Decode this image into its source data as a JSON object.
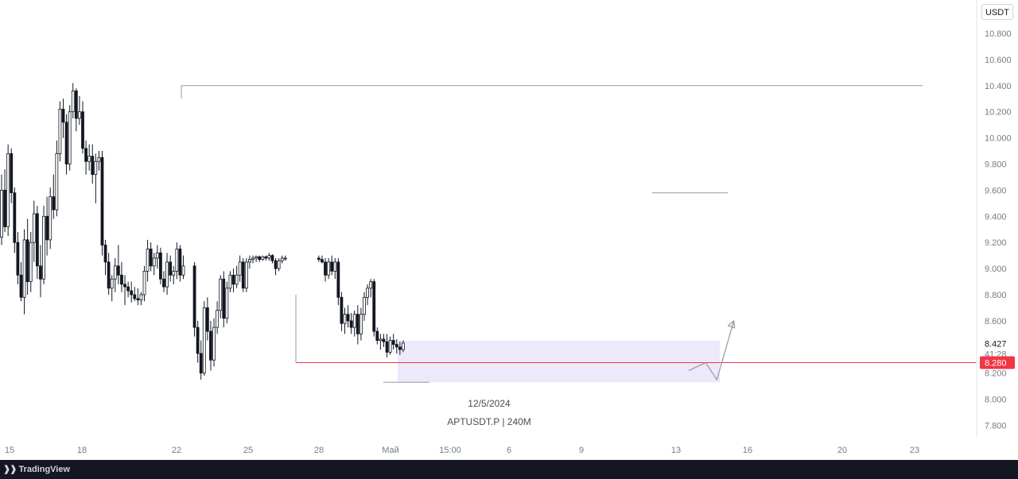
{
  "currency": "USDT",
  "watermark": {
    "date": "12/5/2024",
    "symbol": "APTUSDT.P | 240M"
  },
  "footer": {
    "brand": "TradingView",
    "logo_icon": "tradingview-logo-icon"
  },
  "colors": {
    "up": "#ffffff",
    "down": "#131722",
    "wick": "#131722",
    "zone": "#ede9fb",
    "price_line": "#f23645",
    "level_line": "#9598a1"
  },
  "chart_data": {
    "type": "candlestick",
    "symbol": "APTUSDT.P",
    "timeframe": "240M",
    "ylim": [
      7.7,
      10.9
    ],
    "y_ticks": [
      "10.800",
      "10.600",
      "10.400",
      "10.200",
      "10.000",
      "9.800",
      "9.600",
      "9.400",
      "9.200",
      "9.000",
      "8.800",
      "8.600",
      "8.400",
      "8.200",
      "8.000",
      "7.800"
    ],
    "x_ticks": [
      "15",
      "18",
      "22",
      "25",
      "28",
      "Май",
      "15:00",
      "6",
      "9",
      "13",
      "16",
      "20",
      "23"
    ],
    "current_price": {
      "value": "8.427",
      "countdown": "41:28"
    },
    "alert_price": "8.280",
    "levels": [
      10.4,
      9.58,
      8.28
    ],
    "zone": {
      "y_top": 8.45,
      "y_bottom": 8.13
    },
    "candles": [
      [
        9.24,
        9.72,
        9.18,
        9.6
      ],
      [
        9.6,
        9.76,
        9.28,
        9.32
      ],
      [
        9.32,
        9.95,
        9.25,
        9.88
      ],
      [
        9.88,
        9.92,
        9.5,
        9.58
      ],
      [
        9.58,
        9.62,
        9.12,
        9.2
      ],
      [
        9.2,
        9.28,
        8.88,
        8.95
      ],
      [
        8.95,
        9.05,
        8.75,
        8.78
      ],
      [
        8.78,
        9.3,
        8.65,
        9.22
      ],
      [
        9.22,
        9.38,
        8.8,
        8.9
      ],
      [
        8.9,
        9.28,
        8.82,
        9.2
      ],
      [
        9.2,
        9.52,
        9.05,
        9.42
      ],
      [
        9.42,
        9.48,
        8.92,
        9.02
      ],
      [
        9.02,
        9.18,
        8.78,
        8.92
      ],
      [
        8.92,
        9.48,
        8.88,
        9.4
      ],
      [
        9.4,
        9.55,
        9.1,
        9.22
      ],
      [
        9.22,
        9.62,
        9.15,
        9.55
      ],
      [
        9.55,
        9.72,
        9.38,
        9.45
      ],
      [
        9.45,
        9.98,
        9.4,
        9.88
      ],
      [
        9.88,
        10.28,
        9.82,
        10.22
      ],
      [
        10.22,
        10.3,
        10.0,
        10.12
      ],
      [
        10.12,
        10.18,
        9.72,
        9.8
      ],
      [
        9.8,
        10.25,
        9.75,
        10.2
      ],
      [
        10.2,
        10.42,
        10.15,
        10.36
      ],
      [
        10.36,
        10.38,
        10.05,
        10.15
      ],
      [
        10.15,
        10.32,
        10.1,
        10.2
      ],
      [
        10.2,
        10.28,
        9.88,
        9.92
      ],
      [
        9.92,
        9.98,
        9.72,
        9.82
      ],
      [
        9.82,
        9.95,
        9.75,
        9.86
      ],
      [
        9.86,
        9.95,
        9.65,
        9.72
      ],
      [
        9.72,
        9.88,
        9.5,
        9.82
      ],
      [
        9.82,
        9.9,
        9.75,
        9.85
      ],
      [
        9.85,
        9.9,
        9.1,
        9.18
      ],
      [
        9.18,
        9.22,
        8.95,
        9.05
      ],
      [
        9.05,
        9.12,
        8.8,
        8.85
      ],
      [
        8.85,
        8.95,
        8.75,
        8.92
      ],
      [
        8.92,
        9.08,
        8.82,
        9.02
      ],
      [
        9.02,
        9.18,
        8.88,
        8.95
      ],
      [
        8.95,
        9.05,
        8.82,
        8.88
      ],
      [
        8.88,
        8.95,
        8.72,
        8.86
      ],
      [
        8.86,
        8.9,
        8.78,
        8.83
      ],
      [
        8.83,
        8.9,
        8.74,
        8.8
      ],
      [
        8.8,
        8.86,
        8.75,
        8.77
      ],
      [
        8.77,
        8.85,
        8.72,
        8.76
      ],
      [
        8.76,
        8.82,
        8.72,
        8.8
      ],
      [
        8.8,
        9.02,
        8.75,
        8.98
      ],
      [
        8.98,
        9.22,
        8.9,
        9.15
      ],
      [
        9.15,
        9.2,
        8.98,
        9.02
      ],
      [
        9.02,
        9.12,
        8.95,
        9.08
      ],
      [
        9.08,
        9.18,
        9.0,
        9.12
      ],
      [
        9.12,
        9.16,
        8.88,
        8.92
      ],
      [
        8.92,
        8.98,
        8.82,
        8.86
      ],
      [
        8.86,
        9.12,
        8.8,
        9.05
      ],
      [
        9.05,
        9.1,
        8.9,
        8.95
      ],
      [
        8.95,
        9.02,
        8.88,
        8.98
      ],
      [
        8.98,
        9.2,
        8.92,
        9.15
      ],
      [
        9.15,
        9.18,
        8.9,
        8.95
      ],
      [
        8.95,
        9.1,
        8.92,
        9.02
      ],
      [
        9.02,
        9.05,
        8.48,
        8.55
      ],
      [
        8.55,
        8.6,
        8.28,
        8.35
      ],
      [
        8.35,
        8.45,
        8.15,
        8.2
      ],
      [
        8.2,
        8.75,
        8.18,
        8.7
      ],
      [
        8.7,
        8.78,
        8.45,
        8.52
      ],
      [
        8.52,
        8.6,
        8.22,
        8.3
      ],
      [
        8.3,
        8.62,
        8.25,
        8.55
      ],
      [
        8.55,
        8.75,
        8.5,
        8.68
      ],
      [
        8.68,
        8.95,
        8.62,
        8.92
      ],
      [
        8.92,
        8.98,
        8.55,
        8.62
      ],
      [
        8.62,
        8.9,
        8.58,
        8.85
      ],
      [
        8.85,
        8.98,
        8.82,
        8.95
      ],
      [
        8.95,
        9.0,
        8.82,
        8.88
      ],
      [
        8.88,
        9.02,
        8.85,
        8.95
      ],
      [
        8.95,
        9.1,
        8.9,
        9.05
      ],
      [
        9.05,
        9.08,
        8.82,
        8.85
      ],
      [
        8.85,
        9.08,
        8.82,
        9.05
      ],
      [
        9.05,
        9.1,
        9.0,
        9.07
      ],
      [
        9.07,
        9.1,
        9.04,
        9.08
      ],
      [
        9.08,
        9.1,
        9.05,
        9.09
      ],
      [
        9.09,
        9.1,
        9.05,
        9.07
      ],
      [
        9.07,
        9.1,
        9.06,
        9.09
      ],
      [
        9.09,
        9.1,
        9.06,
        9.08
      ],
      [
        9.08,
        9.12,
        9.06,
        9.1
      ],
      [
        9.1,
        9.11,
        9.04,
        9.06
      ],
      [
        9.06,
        9.08,
        8.95,
        9.0
      ],
      [
        9.0,
        9.08,
        8.98,
        9.06
      ],
      [
        9.06,
        9.1,
        9.04,
        9.08
      ],
      [
        9.08,
        9.1,
        9.06,
        9.08
      ],
      [
        9.08,
        9.1,
        9.05,
        9.07
      ],
      [
        9.07,
        9.1,
        9.04,
        9.05
      ],
      [
        9.05,
        9.08,
        8.9,
        8.95
      ],
      [
        8.95,
        9.08,
        8.92,
        9.05
      ],
      [
        9.05,
        9.1,
        8.95,
        8.98
      ],
      [
        8.98,
        9.08,
        8.92,
        9.05
      ],
      [
        9.05,
        9.08,
        8.72,
        8.78
      ],
      [
        8.78,
        8.82,
        8.52,
        8.58
      ],
      [
        8.58,
        8.7,
        8.5,
        8.65
      ],
      [
        8.65,
        8.72,
        8.55,
        8.6
      ],
      [
        8.6,
        8.66,
        8.5,
        8.55
      ],
      [
        8.55,
        8.68,
        8.48,
        8.65
      ],
      [
        8.65,
        8.72,
        8.42,
        8.5
      ],
      [
        8.5,
        8.7,
        8.45,
        8.65
      ],
      [
        8.65,
        8.82,
        8.6,
        8.78
      ],
      [
        8.78,
        8.88,
        8.72,
        8.85
      ],
      [
        8.85,
        8.92,
        8.78,
        8.9
      ],
      [
        8.9,
        8.92,
        8.48,
        8.52
      ],
      [
        8.52,
        8.55,
        8.42,
        8.45
      ],
      [
        8.45,
        8.5,
        8.38,
        8.46
      ],
      [
        8.46,
        8.5,
        8.4,
        8.44
      ],
      [
        8.44,
        8.5,
        8.32,
        8.36
      ],
      [
        8.36,
        8.48,
        8.34,
        8.45
      ],
      [
        8.45,
        8.5,
        8.38,
        8.42
      ],
      [
        8.42,
        8.46,
        8.35,
        8.4
      ],
      [
        8.4,
        8.44,
        8.34,
        8.38
      ],
      [
        8.38,
        8.45,
        8.36,
        8.43
      ]
    ],
    "projection": [
      [
        8.6,
        8.22
      ],
      [
        8.72,
        8.28
      ],
      [
        8.8,
        8.15
      ],
      [
        8.92,
        8.6
      ]
    ]
  }
}
